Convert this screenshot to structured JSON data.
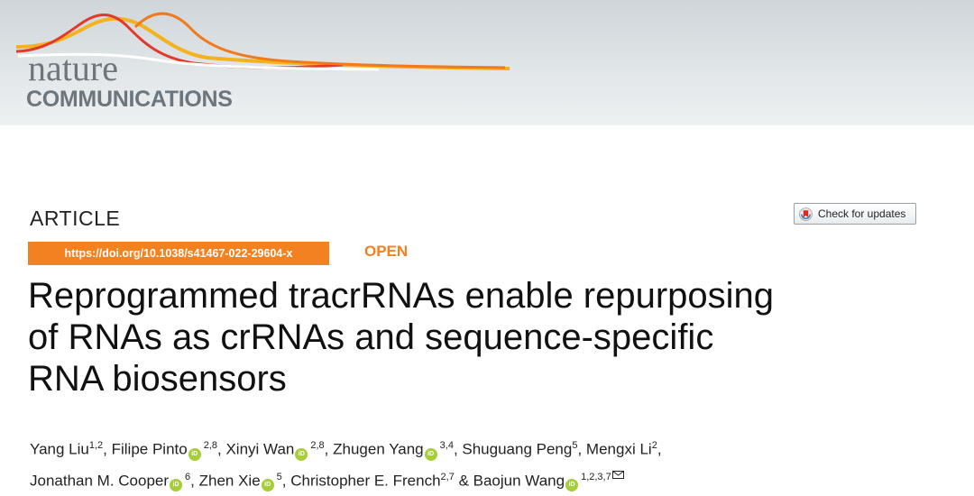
{
  "journal": {
    "logo_line1": "nature",
    "logo_line2": "COMMUNICATIONS"
  },
  "article_type": "ARTICLE",
  "check_updates_label": "Check for updates",
  "doi": "https://doi.org/10.1038/s41467-022-29604-x",
  "access": "OPEN",
  "title_lines": [
    "Reprogrammed tracrRNAs enable repurposing",
    "of RNAs as crRNAs and sequence-specific",
    "RNA biosensors"
  ],
  "authors": [
    {
      "name": "Yang Liu",
      "aff": "1,2",
      "orcid": false
    },
    {
      "name": "Filipe Pinto",
      "aff": "2,8",
      "orcid": true
    },
    {
      "name": "Xinyi Wan",
      "aff": "2,8",
      "orcid": true
    },
    {
      "name": "Zhugen Yang",
      "aff": "3,4",
      "orcid": true
    },
    {
      "name": "Shuguang Peng",
      "aff": "5",
      "orcid": false
    },
    {
      "name": "Mengxi Li",
      "aff": "2",
      "orcid": false
    },
    {
      "name": "Jonathan M. Cooper",
      "aff": "6",
      "orcid": true
    },
    {
      "name": "Zhen Xie",
      "aff": "5",
      "orcid": true
    },
    {
      "name": "Christopher E. French",
      "aff": "2,7",
      "orcid": false
    },
    {
      "name": "Baojun Wang",
      "aff": "1,2,3,7",
      "orcid": true,
      "corresponding": true
    }
  ],
  "colors": {
    "accent_orange": "#f4811f",
    "orcid_green": "#a6ce39",
    "logo_gray": "#6d767d"
  },
  "icons": {
    "orcid": "orcid-icon",
    "check": "crossmark-icon",
    "mail": "envelope-icon"
  }
}
